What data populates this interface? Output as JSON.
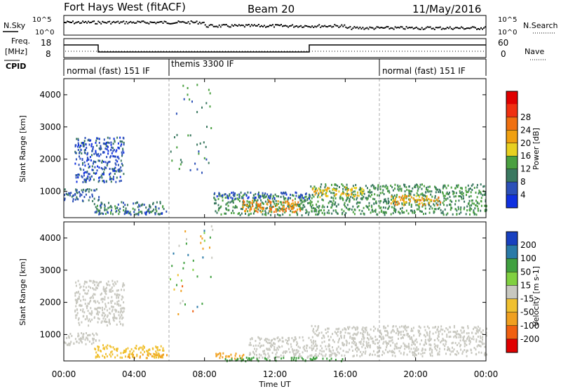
{
  "header": {
    "station": "Fort Hays West (fitACF)",
    "beam": "Beam 20",
    "date": "11/May/2016"
  },
  "noise_panel": {
    "left_label": "N.Sky",
    "right_label": "N.Search",
    "left_ticks": [
      "10^5",
      "10^0"
    ],
    "right_ticks": [
      "10^5",
      "10^0"
    ]
  },
  "freq_panel": {
    "left_label_top": "Freq.",
    "left_label_unit": "[MHz]",
    "right_label": "Nave",
    "left_ticks": [
      "18",
      "8"
    ],
    "right_ticks": [
      "60",
      "0"
    ]
  },
  "cpid": {
    "label": "CPID",
    "segments": [
      {
        "label": "normal (fast) 151 IF"
      },
      {
        "label": "themis 3300 IF"
      },
      {
        "label": "normal (fast) 151 IF"
      }
    ]
  },
  "power_colorbar": {
    "title": "Power [dB]",
    "ticks": [
      "4",
      "8",
      "12",
      "16",
      "20",
      "24",
      "28"
    ],
    "colors": [
      "#1030e0",
      "#2c50b8",
      "#3a7860",
      "#4aa040",
      "#e8d020",
      "#f0a010",
      "#f07010",
      "#f03010",
      "#e00000"
    ]
  },
  "velocity_colorbar": {
    "title": "Velocity [m s-1]",
    "ticks": [
      "200",
      "100",
      "50",
      "15",
      "-15",
      "-50",
      "-100",
      "-200"
    ],
    "colors": [
      "#1840c0",
      "#2a7aa8",
      "#40a040",
      "#80d040",
      "#c8c8c0",
      "#f0c030",
      "#f0a020",
      "#f06010",
      "#e00000"
    ]
  },
  "chart_data": [
    {
      "type": "heatmap",
      "title": "Power",
      "xlabel": "",
      "ylabel": "Slant Range [km]",
      "x_ticks": [
        "00:00",
        "04:00",
        "08:00",
        "12:00",
        "16:00",
        "20:00",
        "00:00"
      ],
      "y_ticks": [
        "1000",
        "2000",
        "3000",
        "4000"
      ],
      "xlim_hours": [
        0,
        24
      ],
      "ylim_km": [
        180,
        4500
      ],
      "regions": [
        {
          "x": [
            0.0,
            2.0
          ],
          "y": [
            700,
            1100
          ],
          "value_db": 10
        },
        {
          "x": [
            0.6,
            3.4
          ],
          "y": [
            1300,
            2700
          ],
          "value_db": 8
        },
        {
          "x": [
            1.7,
            5.7
          ],
          "y": [
            300,
            700
          ],
          "value_db": 12
        },
        {
          "x": [
            3.4,
            5.9
          ],
          "y": [
            300,
            420
          ],
          "value_db": 8
        },
        {
          "x": [
            8.5,
            14.0
          ],
          "y": [
            280,
            950
          ],
          "value_db": 14
        },
        {
          "x": [
            10.0,
            13.5
          ],
          "y": [
            380,
            750
          ],
          "value_db": 26
        },
        {
          "x": [
            14.0,
            24.0
          ],
          "y": [
            300,
            1250
          ],
          "value_db": 14
        },
        {
          "x": [
            14.0,
            17.0
          ],
          "y": [
            850,
            1150
          ],
          "value_db": 22
        },
        {
          "x": [
            18.5,
            21.5
          ],
          "y": [
            600,
            900
          ],
          "value_db": 24
        },
        {
          "x": [
            8.5,
            14.0
          ],
          "y": [
            800,
            1000
          ],
          "value_db": 8
        }
      ]
    },
    {
      "type": "heatmap",
      "title": "Velocity",
      "xlabel": "Time UT",
      "ylabel": "Slant Range [km]",
      "x_ticks": [
        "00:00",
        "04:00",
        "08:00",
        "12:00",
        "16:00",
        "20:00",
        "00:00"
      ],
      "y_ticks": [
        "1000",
        "2000",
        "3000",
        "4000"
      ],
      "xlim_hours": [
        0,
        24
      ],
      "ylim_km": [
        180,
        4500
      ],
      "regions": [
        {
          "x": [
            0.0,
            2.0
          ],
          "y": [
            700,
            1100
          ],
          "value_ms": 0
        },
        {
          "x": [
            0.6,
            3.4
          ],
          "y": [
            1300,
            2700
          ],
          "value_ms": 0
        },
        {
          "x": [
            1.7,
            5.7
          ],
          "y": [
            300,
            700
          ],
          "value_ms": -40
        },
        {
          "x": [
            3.4,
            5.9
          ],
          "y": [
            300,
            420
          ],
          "value_ms": -60
        },
        {
          "x": [
            8.5,
            10.5
          ],
          "y": [
            280,
            450
          ],
          "value_ms": -80
        },
        {
          "x": [
            10.5,
            14.0
          ],
          "y": [
            300,
            950
          ],
          "value_ms": 0
        },
        {
          "x": [
            14.0,
            24.0
          ],
          "y": [
            350,
            1300
          ],
          "value_ms": 0
        },
        {
          "x": [
            9.0,
            16.0
          ],
          "y": [
            200,
            320
          ],
          "value_ms": 60
        }
      ]
    }
  ]
}
